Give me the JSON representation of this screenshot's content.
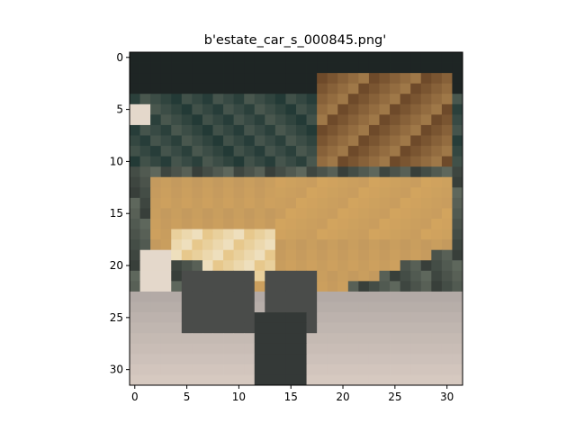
{
  "chart_data": {
    "type": "heatmap",
    "title": "b'estate_car_s_000845.png'",
    "xlabel": "",
    "ylabel": "",
    "image_size": [
      32,
      32
    ],
    "xlim": [
      -0.5,
      31.5
    ],
    "ylim": [
      31.5,
      -0.5
    ],
    "x_ticks": [
      0,
      5,
      10,
      15,
      20,
      25,
      30
    ],
    "y_ticks": [
      0,
      5,
      10,
      15,
      20,
      25,
      30
    ],
    "x_tick_labels": [
      "0",
      "5",
      "10",
      "15",
      "20",
      "25",
      "30"
    ],
    "y_tick_labels": [
      "0",
      "5",
      "10",
      "15",
      "20",
      "25",
      "30"
    ],
    "grid": false,
    "colors": {
      "dark": "#1e2524",
      "darkgreen": "#233a36",
      "greygreen": "#5e675c",
      "brown": "#6e4a2a",
      "tan": "#c49a5e",
      "gold": "#d2a45e",
      "lightgold": "#e7c88c",
      "cream": "#f0e7cd",
      "pale": "#e4d8cb",
      "floor": "#d6c9c0",
      "greyfloor": "#b3aaa6",
      "darkgrey": "#4a4c4a"
    }
  }
}
